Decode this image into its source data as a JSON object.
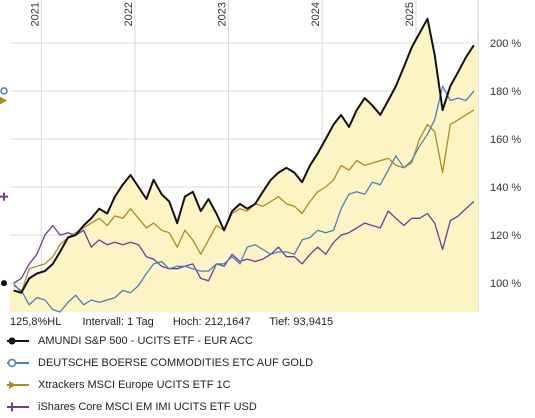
{
  "chart_data": {
    "type": "line",
    "x_years": [
      "2021",
      "2022",
      "2023",
      "2024",
      "2025"
    ],
    "y_ticks": [
      "100 %",
      "120 %",
      "140 %",
      "160 %",
      "180 %",
      "200 %"
    ],
    "y_tick_values": [
      100,
      120,
      140,
      160,
      180,
      200
    ],
    "ylim": [
      88,
      212
    ],
    "grid": true,
    "legend_position": "bottom",
    "series": [
      {
        "name": "AMUNDI S&P 500 - UCITS ETF - EUR ACC",
        "color": "#111111",
        "marker": "circle-filled",
        "area_fill": "#fdf4c4",
        "points": [
          [
            "2020-09",
            97
          ],
          [
            "2020-10",
            96
          ],
          [
            "2020-11",
            102
          ],
          [
            "2020-12",
            104
          ],
          [
            "2021-01",
            105
          ],
          [
            "2021-02",
            108
          ],
          [
            "2021-03",
            113
          ],
          [
            "2021-04",
            119
          ],
          [
            "2021-05",
            120
          ],
          [
            "2021-06",
            124
          ],
          [
            "2021-07",
            127
          ],
          [
            "2021-08",
            131
          ],
          [
            "2021-09",
            129
          ],
          [
            "2021-10",
            136
          ],
          [
            "2021-11",
            141
          ],
          [
            "2021-12",
            145
          ],
          [
            "2022-01",
            140
          ],
          [
            "2022-02",
            135
          ],
          [
            "2022-03",
            143
          ],
          [
            "2022-04",
            137
          ],
          [
            "2022-05",
            134
          ],
          [
            "2022-06",
            125
          ],
          [
            "2022-07",
            136
          ],
          [
            "2022-08",
            138
          ],
          [
            "2022-09",
            130
          ],
          [
            "2022-10",
            135
          ],
          [
            "2022-11",
            129
          ],
          [
            "2022-12",
            122
          ],
          [
            "2023-01",
            130
          ],
          [
            "2023-02",
            133
          ],
          [
            "2023-03",
            131
          ],
          [
            "2023-04",
            133
          ],
          [
            "2023-05",
            138
          ],
          [
            "2023-06",
            143
          ],
          [
            "2023-07",
            146
          ],
          [
            "2023-08",
            148
          ],
          [
            "2023-09",
            146
          ],
          [
            "2023-10",
            142
          ],
          [
            "2023-11",
            149
          ],
          [
            "2023-12",
            154
          ],
          [
            "2024-01",
            160
          ],
          [
            "2024-02",
            166
          ],
          [
            "2024-03",
            170
          ],
          [
            "2024-04",
            165
          ],
          [
            "2024-05",
            172
          ],
          [
            "2024-06",
            177
          ],
          [
            "2024-07",
            174
          ],
          [
            "2024-08",
            170
          ],
          [
            "2024-09",
            176
          ],
          [
            "2024-10",
            182
          ],
          [
            "2024-11",
            190
          ],
          [
            "2024-12",
            198
          ],
          [
            "2025-01",
            204
          ],
          [
            "2025-02",
            210
          ],
          [
            "2025-03",
            195
          ],
          [
            "2025-04",
            172
          ],
          [
            "2025-05",
            182
          ],
          [
            "2025-06",
            188
          ],
          [
            "2025-07",
            194
          ],
          [
            "2025-08",
            199
          ]
        ]
      },
      {
        "name": "DEUTSCHE BOERSE COMMODITIES ETC AUF GOLD",
        "color": "#4a7fc1",
        "marker": "circle-open",
        "points": [
          [
            "2020-09",
            99
          ],
          [
            "2020-10",
            97
          ],
          [
            "2020-11",
            91
          ],
          [
            "2020-12",
            94
          ],
          [
            "2021-01",
            93
          ],
          [
            "2021-02",
            89
          ],
          [
            "2021-03",
            88
          ],
          [
            "2021-04",
            92
          ],
          [
            "2021-05",
            95
          ],
          [
            "2021-06",
            91
          ],
          [
            "2021-07",
            93
          ],
          [
            "2021-08",
            92
          ],
          [
            "2021-09",
            93
          ],
          [
            "2021-10",
            94
          ],
          [
            "2021-11",
            97
          ],
          [
            "2021-12",
            96
          ],
          [
            "2022-01",
            99
          ],
          [
            "2022-02",
            104
          ],
          [
            "2022-03",
            108
          ],
          [
            "2022-04",
            109
          ],
          [
            "2022-05",
            106
          ],
          [
            "2022-06",
            107
          ],
          [
            "2022-07",
            107
          ],
          [
            "2022-08",
            106
          ],
          [
            "2022-09",
            105
          ],
          [
            "2022-10",
            105
          ],
          [
            "2022-11",
            108
          ],
          [
            "2022-12",
            108
          ],
          [
            "2023-01",
            111
          ],
          [
            "2023-02",
            108
          ],
          [
            "2023-03",
            115
          ],
          [
            "2023-04",
            116
          ],
          [
            "2023-05",
            114
          ],
          [
            "2023-06",
            112
          ],
          [
            "2023-07",
            113
          ],
          [
            "2023-08",
            113
          ],
          [
            "2023-09",
            112
          ],
          [
            "2023-10",
            118
          ],
          [
            "2023-11",
            119
          ],
          [
            "2023-12",
            122
          ],
          [
            "2024-01",
            121
          ],
          [
            "2024-02",
            122
          ],
          [
            "2024-03",
            131
          ],
          [
            "2024-04",
            137
          ],
          [
            "2024-05",
            138
          ],
          [
            "2024-06",
            137
          ],
          [
            "2024-07",
            142
          ],
          [
            "2024-08",
            141
          ],
          [
            "2024-09",
            147
          ],
          [
            "2024-10",
            153
          ],
          [
            "2024-11",
            148
          ],
          [
            "2024-12",
            151
          ],
          [
            "2025-01",
            157
          ],
          [
            "2025-02",
            162
          ],
          [
            "2025-03",
            168
          ],
          [
            "2025-04",
            182
          ],
          [
            "2025-05",
            176
          ],
          [
            "2025-06",
            177
          ],
          [
            "2025-07",
            176
          ],
          [
            "2025-08",
            180
          ]
        ]
      },
      {
        "name": "Xtrackers MSCI Europe UCITS ETF 1C",
        "color": "#b08a1e",
        "marker": "triangle",
        "points": [
          [
            "2020-09",
            100
          ],
          [
            "2020-10",
            96
          ],
          [
            "2020-11",
            106
          ],
          [
            "2020-12",
            107
          ],
          [
            "2021-01",
            108
          ],
          [
            "2021-02",
            111
          ],
          [
            "2021-03",
            116
          ],
          [
            "2021-04",
            119
          ],
          [
            "2021-05",
            121
          ],
          [
            "2021-06",
            123
          ],
          [
            "2021-07",
            125
          ],
          [
            "2021-08",
            127
          ],
          [
            "2021-09",
            124
          ],
          [
            "2021-10",
            128
          ],
          [
            "2021-11",
            127
          ],
          [
            "2021-12",
            131
          ],
          [
            "2022-01",
            127
          ],
          [
            "2022-02",
            123
          ],
          [
            "2022-03",
            125
          ],
          [
            "2022-04",
            122
          ],
          [
            "2022-05",
            121
          ],
          [
            "2022-06",
            115
          ],
          [
            "2022-07",
            122
          ],
          [
            "2022-08",
            118
          ],
          [
            "2022-09",
            112
          ],
          [
            "2022-10",
            118
          ],
          [
            "2022-11",
            124
          ],
          [
            "2022-12",
            122
          ],
          [
            "2023-01",
            129
          ],
          [
            "2023-02",
            131
          ],
          [
            "2023-03",
            130
          ],
          [
            "2023-04",
            133
          ],
          [
            "2023-05",
            132
          ],
          [
            "2023-06",
            134
          ],
          [
            "2023-07",
            136
          ],
          [
            "2023-08",
            133
          ],
          [
            "2023-09",
            132
          ],
          [
            "2023-10",
            129
          ],
          [
            "2023-11",
            134
          ],
          [
            "2023-12",
            138
          ],
          [
            "2024-01",
            140
          ],
          [
            "2024-02",
            143
          ],
          [
            "2024-03",
            149
          ],
          [
            "2024-04",
            147
          ],
          [
            "2024-05",
            151
          ],
          [
            "2024-06",
            149
          ],
          [
            "2024-07",
            150
          ],
          [
            "2024-08",
            151
          ],
          [
            "2024-09",
            152
          ],
          [
            "2024-10",
            149
          ],
          [
            "2024-11",
            148
          ],
          [
            "2024-12",
            150
          ],
          [
            "2025-01",
            160
          ],
          [
            "2025-02",
            166
          ],
          [
            "2025-03",
            163
          ],
          [
            "2025-04",
            146
          ],
          [
            "2025-05",
            166
          ],
          [
            "2025-06",
            168
          ],
          [
            "2025-07",
            170
          ],
          [
            "2025-08",
            172
          ]
        ]
      },
      {
        "name": "iShares Core MSCI EM IMI UCITS ETF USD",
        "color": "#6a3d9a",
        "marker": "plus",
        "points": [
          [
            "2020-09",
            100
          ],
          [
            "2020-10",
            102
          ],
          [
            "2020-11",
            108
          ],
          [
            "2020-12",
            112
          ],
          [
            "2021-01",
            120
          ],
          [
            "2021-02",
            124
          ],
          [
            "2021-03",
            120
          ],
          [
            "2021-04",
            121
          ],
          [
            "2021-05",
            120
          ],
          [
            "2021-06",
            122
          ],
          [
            "2021-07",
            115
          ],
          [
            "2021-08",
            118
          ],
          [
            "2021-09",
            116
          ],
          [
            "2021-10",
            117
          ],
          [
            "2021-11",
            116
          ],
          [
            "2021-12",
            117
          ],
          [
            "2022-01",
            116
          ],
          [
            "2022-02",
            111
          ],
          [
            "2022-03",
            110
          ],
          [
            "2022-04",
            107
          ],
          [
            "2022-05",
            106
          ],
          [
            "2022-06",
            106
          ],
          [
            "2022-07",
            107
          ],
          [
            "2022-08",
            108
          ],
          [
            "2022-09",
            102
          ],
          [
            "2022-10",
            101
          ],
          [
            "2022-11",
            108
          ],
          [
            "2022-12",
            107
          ],
          [
            "2023-01",
            112
          ],
          [
            "2023-02",
            109
          ],
          [
            "2023-03",
            110
          ],
          [
            "2023-04",
            109
          ],
          [
            "2023-05",
            110
          ],
          [
            "2023-06",
            112
          ],
          [
            "2023-07",
            115
          ],
          [
            "2023-08",
            111
          ],
          [
            "2023-09",
            111
          ],
          [
            "2023-10",
            108
          ],
          [
            "2023-11",
            112
          ],
          [
            "2023-12",
            115
          ],
          [
            "2024-01",
            112
          ],
          [
            "2024-02",
            117
          ],
          [
            "2024-03",
            120
          ],
          [
            "2024-04",
            121
          ],
          [
            "2024-05",
            123
          ],
          [
            "2024-06",
            125
          ],
          [
            "2024-07",
            124
          ],
          [
            "2024-08",
            123
          ],
          [
            "2024-09",
            130
          ],
          [
            "2024-10",
            127
          ],
          [
            "2024-11",
            124
          ],
          [
            "2024-12",
            127
          ],
          [
            "2025-01",
            127
          ],
          [
            "2025-02",
            129
          ],
          [
            "2025-03",
            125
          ],
          [
            "2025-04",
            114
          ],
          [
            "2025-05",
            126
          ],
          [
            "2025-06",
            128
          ],
          [
            "2025-07",
            131
          ],
          [
            "2025-08",
            134
          ]
        ]
      }
    ]
  },
  "info_bar": {
    "current": "125,8%HL",
    "interval": "Intervall: 1 Tag",
    "high": "Hoch: 212,1647",
    "low": "Tief: 93,9415"
  }
}
